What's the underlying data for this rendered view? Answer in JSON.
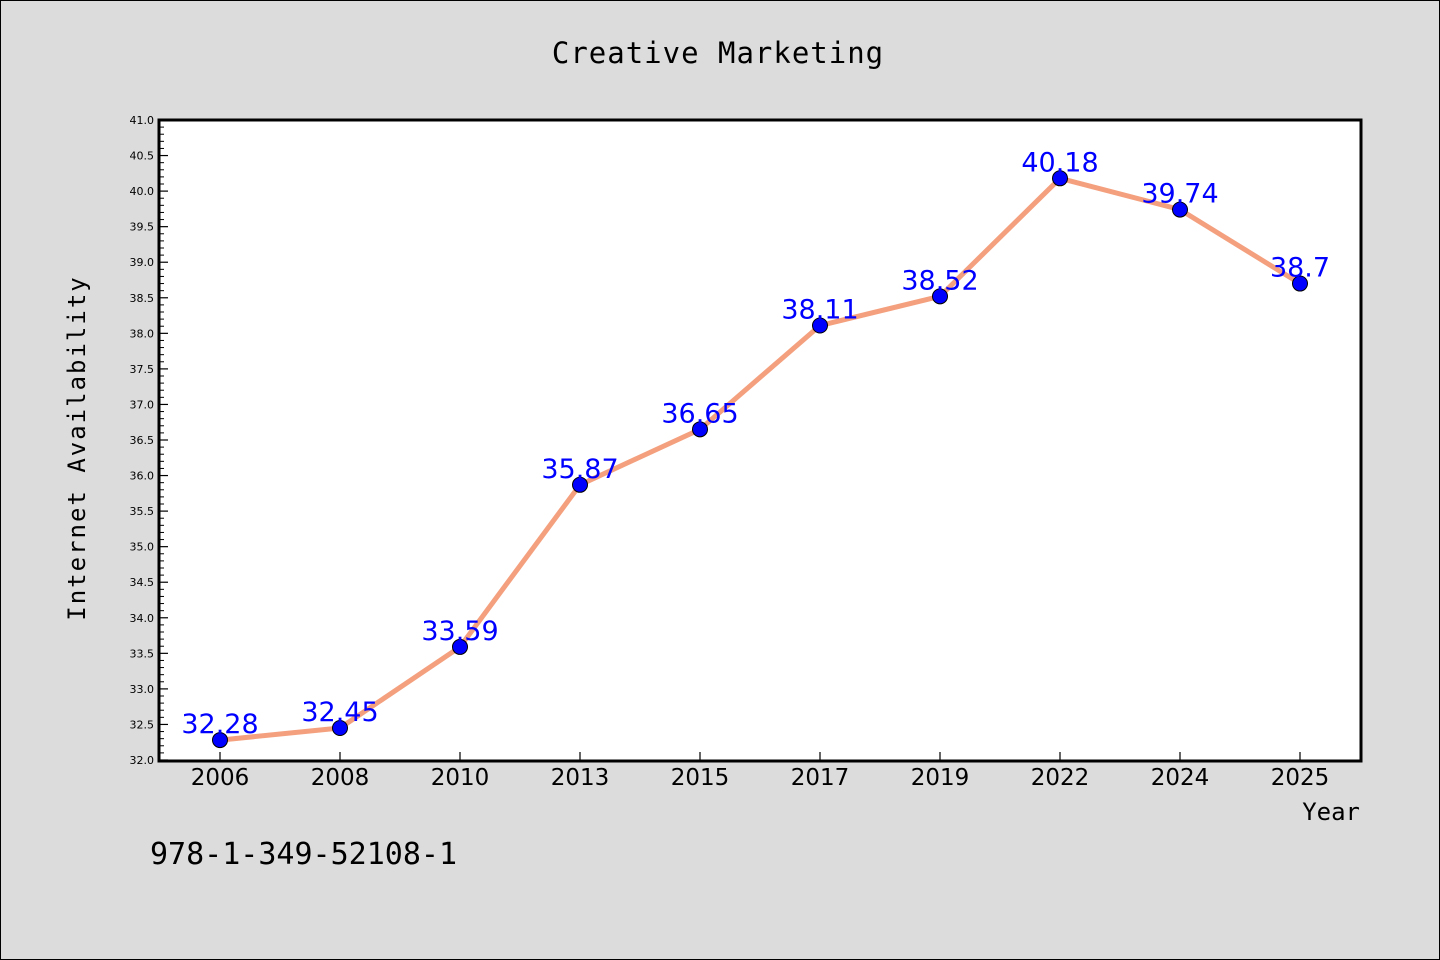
{
  "chart_data": {
    "type": "line",
    "title": "Creative Marketing",
    "xlabel": "Year",
    "ylabel": "Internet Availability",
    "categories": [
      "2006",
      "2008",
      "2010",
      "2013",
      "2015",
      "2017",
      "2019",
      "2022",
      "2024",
      "2025"
    ],
    "series": [
      {
        "values": [
          32.28,
          32.45,
          33.59,
          35.87,
          36.65,
          38.11,
          38.52,
          40.18,
          39.74,
          38.7
        ],
        "labels": [
          "32.28",
          "32.45",
          "33.59",
          "35.87",
          "36.65",
          "38.11",
          "38.52",
          "40.18",
          "39.74",
          "38.7"
        ],
        "line_color": "#f4a07e",
        "marker_color": "#0000ff",
        "label_color": "#0000ff"
      }
    ],
    "ylim": [
      32.0,
      41.0
    ],
    "yticks": [
      "32.0",
      "32.5",
      "33.0",
      "33.5",
      "34.0",
      "34.5",
      "35.0",
      "35.5",
      "36.0",
      "36.5",
      "37.0",
      "37.5",
      "38.0",
      "38.5",
      "39.0",
      "39.5",
      "40.0",
      "40.5",
      "41.0"
    ],
    "grid": false,
    "legend": "none"
  },
  "footer_text": "978-1-349-52108-1"
}
